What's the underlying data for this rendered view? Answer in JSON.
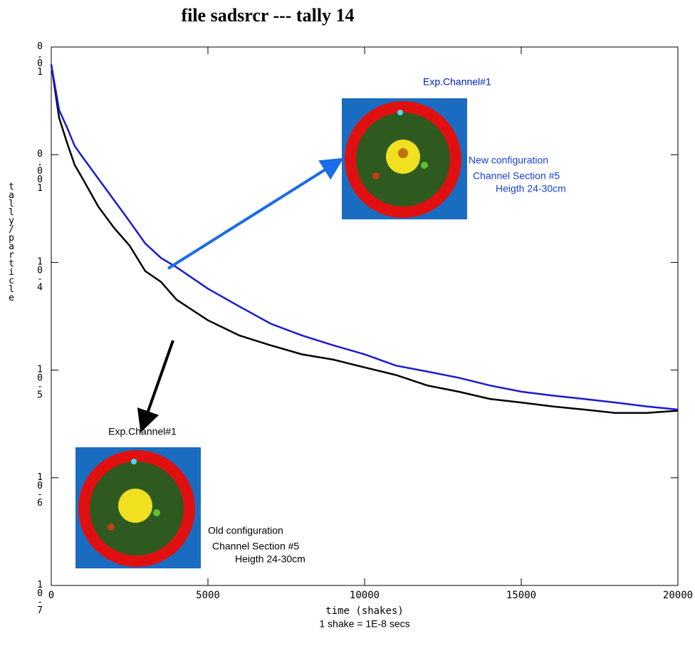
{
  "chart_data": {
    "type": "line",
    "title": "file sadsrcr --- tally 14",
    "xlabel": "time (shakes)",
    "subtitle": "1 shake = 1E-8 secs",
    "ylabel": "tally/particle",
    "log_y": true,
    "xlim": [
      0,
      20000
    ],
    "xticks": [
      0,
      5000,
      10000,
      15000,
      20000
    ],
    "ylim": [
      1e-07,
      0.01
    ],
    "yticks": [
      0.01,
      0.001,
      {
        "value": 0.0001,
        "label": "10-4"
      },
      {
        "value": 1e-05,
        "label": "10-5"
      },
      {
        "value": 1e-06,
        "label": "10-6"
      },
      {
        "value": 1e-07,
        "label": "10-7"
      }
    ],
    "x": [
      0,
      250,
      500,
      750,
      1000,
      1500,
      2000,
      2500,
      3000,
      3500,
      4000,
      5000,
      6000,
      7000,
      8000,
      9000,
      10000,
      11000,
      12000,
      13000,
      14000,
      15000,
      16000,
      17000,
      18000,
      19000,
      20000
    ],
    "series": [
      {
        "name": "black",
        "color": "#000000",
        "values": [
          0.0069,
          0.0022,
          0.0013,
          0.0008,
          0.0006,
          0.00033,
          0.00021,
          0.000143,
          8.3e-05,
          6.6e-05,
          4.5e-05,
          2.9e-05,
          2.1e-05,
          1.7e-05,
          1.4e-05,
          1.25e-05,
          1.06e-05,
          9e-06,
          7.2e-06,
          6.3e-06,
          5.4e-06,
          5e-06,
          4.6e-06,
          4.3e-06,
          4e-06,
          4e-06,
          4.2e-06
        ]
      },
      {
        "name": "blue",
        "color": "#1a1ad0",
        "values": [
          0.0069,
          0.0026,
          0.0018,
          0.0012,
          0.00095,
          0.0006,
          0.00038,
          0.00024,
          0.00015,
          0.00011,
          9e-05,
          5.7e-05,
          3.9e-05,
          2.7e-05,
          2.1e-05,
          1.7e-05,
          1.4e-05,
          1.1e-05,
          9.7e-06,
          8.5e-06,
          7.2e-06,
          6.3e-06,
          5.8e-06,
          5.4e-06,
          5e-06,
          4.6e-06,
          4.3e-06
        ]
      }
    ],
    "annotations": [
      "Exp.Channel#1",
      "New configuration",
      "Channel Section #5",
      "Heigth 24-30cm",
      "Exp.Channel#1",
      "Old configuration",
      "Channel Section #5",
      "Heigth 24-30cm"
    ]
  }
}
